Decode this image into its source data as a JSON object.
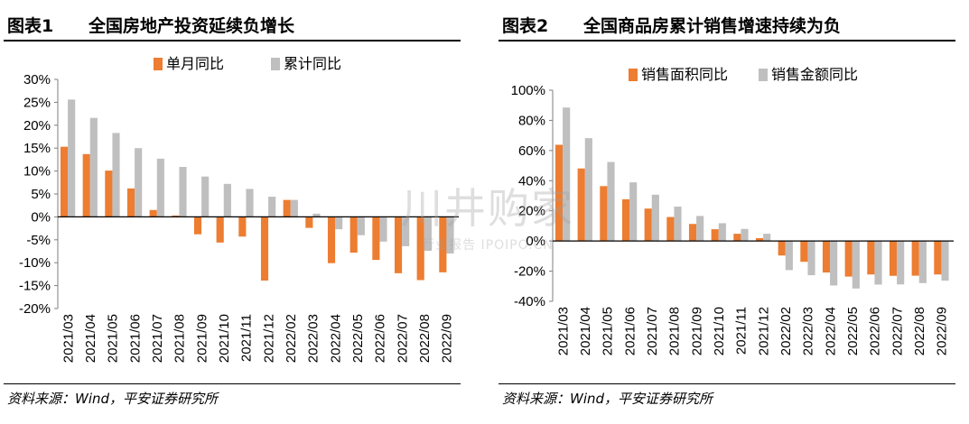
{
  "chart_data": [
    {
      "type": "bar",
      "figure_label": "图表1",
      "title": "全国房地产投资延续负增长",
      "source": "资料来源：Wind，平安证券研究所",
      "categories": [
        "2021/03",
        "2021/04",
        "2021/05",
        "2021/06",
        "2021/07",
        "2021/08",
        "2021/09",
        "2021/10",
        "2021/11",
        "2021/12",
        "2022/02",
        "2022/03",
        "2022/04",
        "2022/05",
        "2022/06",
        "2022/07",
        "2022/08",
        "2022/09"
      ],
      "series": [
        {
          "name": "单月同比",
          "color": "#ED7D31",
          "values": [
            15.3,
            13.7,
            10.1,
            6.2,
            1.5,
            0.3,
            -3.8,
            -5.6,
            -4.3,
            -13.9,
            3.7,
            -2.4,
            -10.1,
            -7.8,
            -9.4,
            -12.3,
            -13.8,
            -12.1
          ]
        },
        {
          "name": "累计同比",
          "color": "#BFBFBF",
          "values": [
            25.6,
            21.6,
            18.3,
            15.0,
            12.7,
            10.9,
            8.8,
            7.2,
            6.1,
            4.4,
            3.7,
            0.7,
            -2.7,
            -4.0,
            -5.4,
            -6.4,
            -7.4,
            -8.0
          ]
        }
      ],
      "ylim": [
        -20,
        30
      ],
      "yticks": [
        -20,
        -15,
        -10,
        -5,
        0,
        5,
        10,
        15,
        20,
        25,
        30
      ],
      "tick_suffix": "%",
      "legend_position": "top-center",
      "grid": false
    },
    {
      "type": "bar",
      "figure_label": "图表2",
      "title": "全国商品房累计销售增速持续为负",
      "source": "资料来源：Wind，平安证券研究所",
      "categories": [
        "2021/03",
        "2021/04",
        "2021/05",
        "2021/06",
        "2021/07",
        "2021/08",
        "2021/09",
        "2021/10",
        "2021/11",
        "2021/12",
        "2022/02",
        "2022/03",
        "2022/04",
        "2022/05",
        "2022/06",
        "2022/07",
        "2022/08",
        "2022/09"
      ],
      "series": [
        {
          "name": "销售面积同比",
          "color": "#ED7D31",
          "values": [
            63.8,
            48.1,
            36.4,
            27.7,
            21.5,
            15.9,
            11.3,
            7.8,
            4.8,
            1.9,
            -9.6,
            -13.8,
            -20.9,
            -23.6,
            -22.2,
            -23.1,
            -23.0,
            -22.2
          ]
        },
        {
          "name": "销售金额同比",
          "color": "#BFBFBF",
          "values": [
            88.5,
            68.2,
            52.4,
            38.9,
            30.7,
            22.8,
            16.6,
            11.8,
            8.0,
            4.8,
            -19.3,
            -22.7,
            -29.5,
            -31.5,
            -28.9,
            -28.8,
            -27.9,
            -26.3
          ]
        }
      ],
      "ylim": [
        -40,
        100
      ],
      "yticks": [
        -40,
        -20,
        0,
        20,
        40,
        60,
        80,
        100
      ],
      "tick_suffix": "%",
      "legend_position": "top-center",
      "grid": false
    }
  ],
  "watermark": {
    "main": "川井购家",
    "sub": "行业报告 IPOIPO.CN"
  }
}
